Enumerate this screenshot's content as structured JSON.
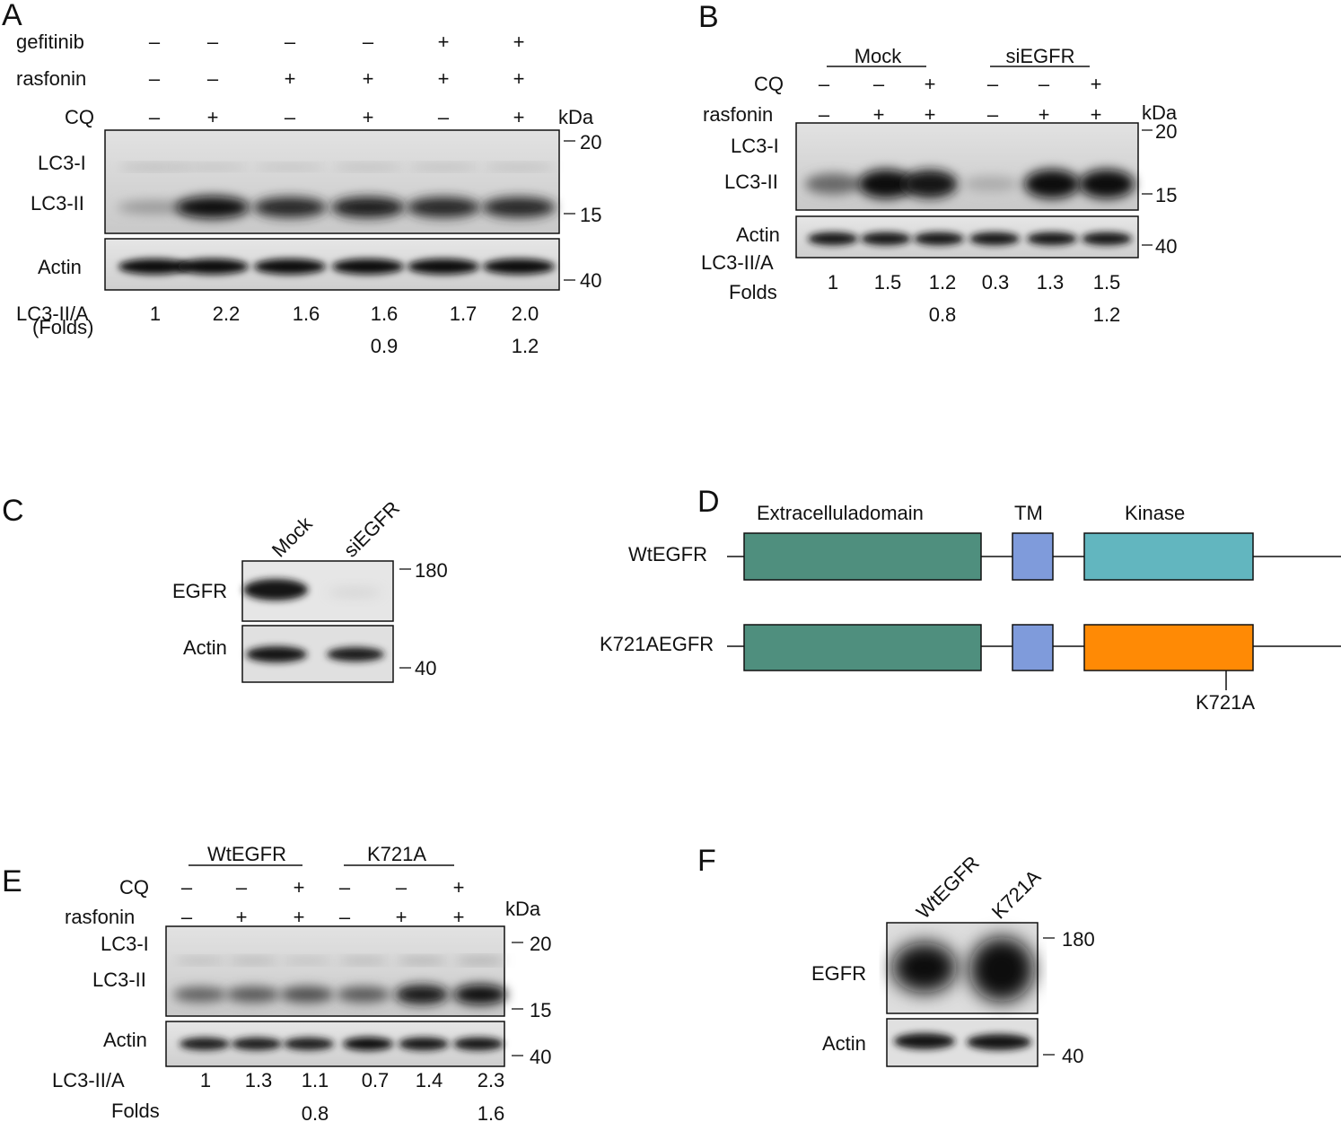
{
  "panels": {
    "A": {
      "label": "A",
      "row_labels": [
        "gefitinib",
        "rasfonin",
        "CQ"
      ],
      "rows": [
        [
          "–",
          "–",
          "–",
          "–",
          "+",
          "+"
        ],
        [
          "–",
          "–",
          "+",
          "+",
          "+",
          "+"
        ],
        [
          "–",
          "+",
          "–",
          "+",
          "–",
          "+"
        ]
      ],
      "kda": "kDa",
      "blot_labels": [
        "LC3-I",
        "LC3-II",
        "Actin"
      ],
      "markers": [
        "20",
        "15",
        "40"
      ],
      "quant_label": [
        "LC3-II/A",
        "(Folds)"
      ],
      "quant_row1": [
        "1",
        "2.2",
        "1.6",
        "1.6",
        "1.7",
        "2.0"
      ],
      "quant_row2": [
        "",
        "",
        "",
        "0.9",
        "",
        "1.2"
      ],
      "lc3ii_intensity": [
        0.25,
        1.0,
        0.85,
        0.9,
        0.85,
        0.85
      ]
    },
    "B": {
      "label": "B",
      "groups": [
        "Mock",
        "siEGFR"
      ],
      "row_labels": [
        "CQ",
        "rasfonin"
      ],
      "rows": [
        [
          "–",
          "–",
          "+",
          "–",
          "–",
          "+"
        ],
        [
          "–",
          "+",
          "+",
          "–",
          "+",
          "+"
        ]
      ],
      "kda": "kDa",
      "blot_labels": [
        "LC3-I",
        "LC3-II",
        "Actin"
      ],
      "markers": [
        "20",
        "15",
        "40"
      ],
      "quant_label": [
        "LC3-II/A",
        "Folds"
      ],
      "quant_row1": [
        "1",
        "1.5",
        "1.2",
        "0.3",
        "1.3",
        "1.5"
      ],
      "quant_row2": [
        "",
        "",
        "0.8",
        "",
        "",
        "1.2"
      ],
      "lc3ii_intensity": [
        0.5,
        1.0,
        0.95,
        0.15,
        1.0,
        1.0
      ]
    },
    "C": {
      "label": "C",
      "lanes": [
        "Mock",
        "siEGFR"
      ],
      "blot_labels": [
        "EGFR",
        "Actin"
      ],
      "markers": [
        "180",
        "40"
      ]
    },
    "D": {
      "label": "D",
      "domains": [
        "Extracelluladomain",
        "TM",
        "Kinase"
      ],
      "constructs": [
        "WtEGFR",
        "K721AEGFR"
      ],
      "mutation": "K721A",
      "colors": {
        "extracellular": "#4f8f7e",
        "tm": "#7f9bdb",
        "kinase_wt": "#62b6bf",
        "kinase_mut": "#ff8a05"
      }
    },
    "E": {
      "label": "E",
      "groups": [
        "WtEGFR",
        "K721A"
      ],
      "row_labels": [
        "CQ",
        "rasfonin"
      ],
      "rows": [
        [
          "–",
          "–",
          "+",
          "–",
          "–",
          "+"
        ],
        [
          "–",
          "+",
          "+",
          "–",
          "+",
          "+"
        ]
      ],
      "kda": "kDa",
      "blot_labels": [
        "LC3-I",
        "LC3-II",
        "Actin"
      ],
      "markers": [
        "20",
        "15",
        "40"
      ],
      "quant_label": [
        "LC3-II/A",
        "Folds"
      ],
      "quant_row1": [
        "1",
        "1.3",
        "1.1",
        "0.7",
        "1.4",
        "2.3"
      ],
      "quant_row2": [
        "",
        "",
        "0.8",
        "",
        "",
        "1.6"
      ],
      "lc3ii_intensity": [
        0.55,
        0.6,
        0.65,
        0.6,
        0.95,
        1.0
      ]
    },
    "F": {
      "label": "F",
      "lanes": [
        "WtEGFR",
        "K721A"
      ],
      "blot_labels": [
        "EGFR",
        "Actin"
      ],
      "markers": [
        "180",
        "40"
      ]
    }
  }
}
